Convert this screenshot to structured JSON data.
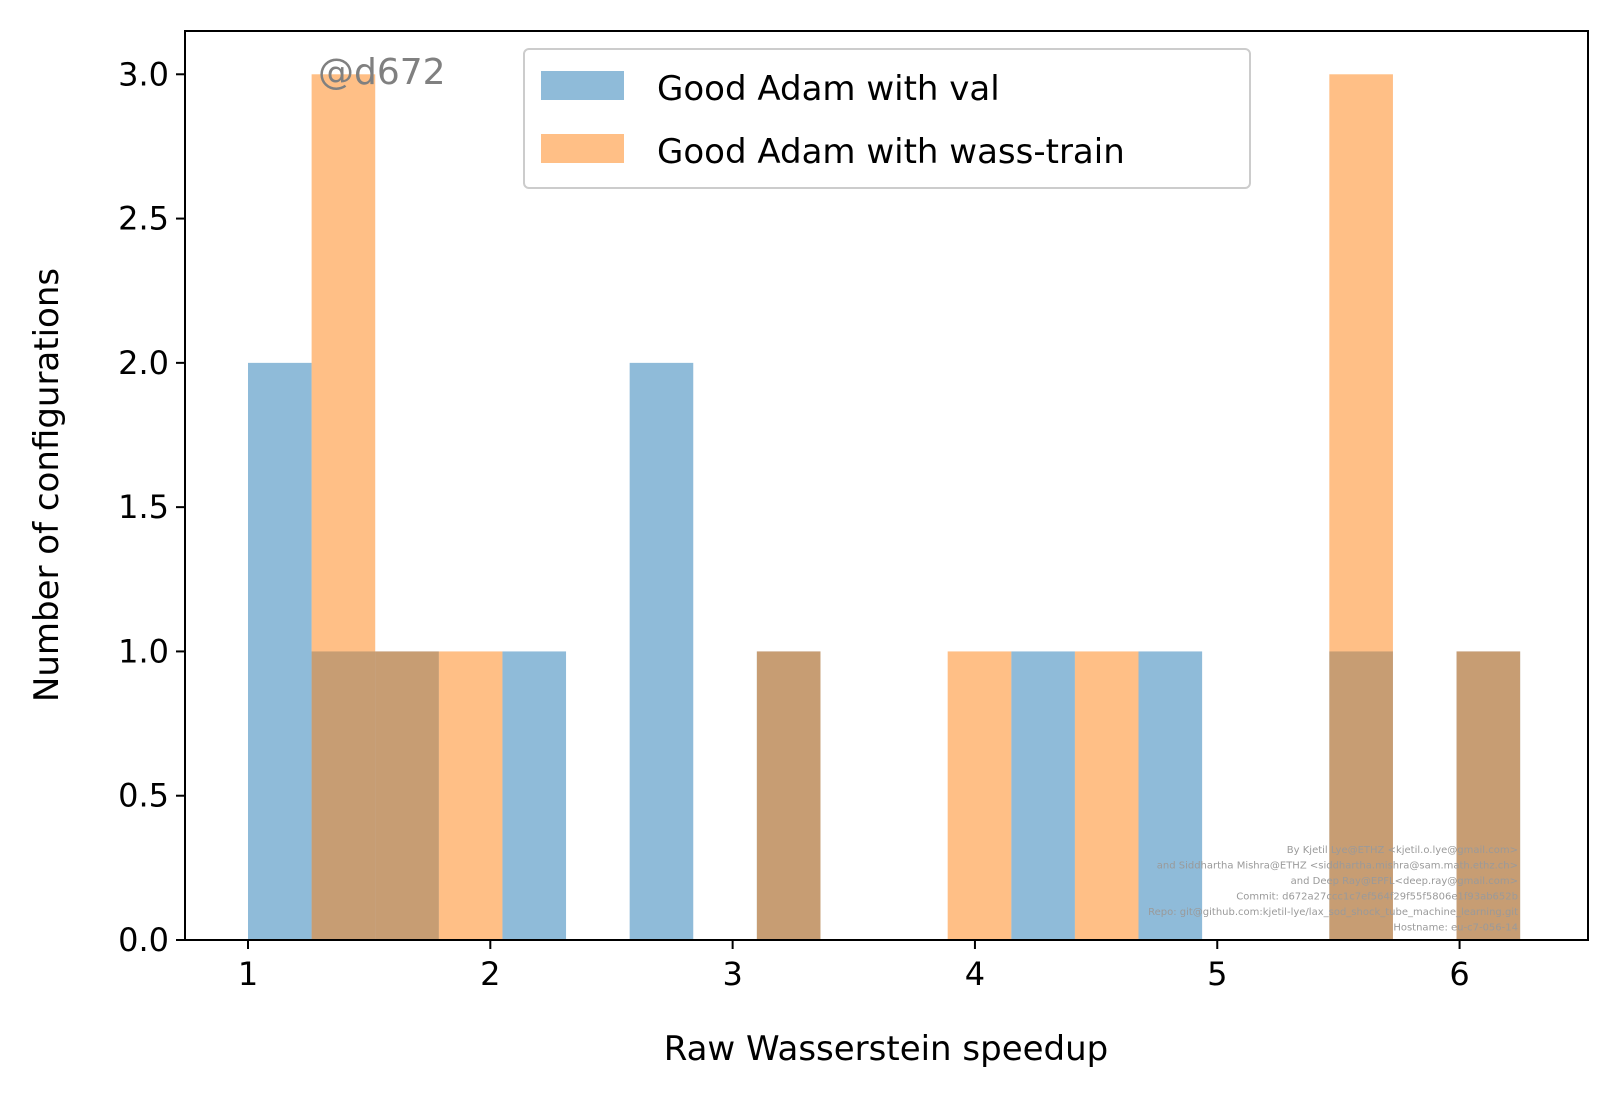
{
  "chart_data": {
    "type": "bar",
    "subtype": "overlapping-histogram",
    "xlabel": "Raw Wasserstein speedup",
    "ylabel": "Number of configurations",
    "xlim": [
      0.74,
      6.53
    ],
    "ylim": [
      0,
      3.15
    ],
    "x_ticks": [
      1,
      2,
      3,
      4,
      5,
      6
    ],
    "y_ticks": [
      0.0,
      0.5,
      1.0,
      1.5,
      2.0,
      2.5,
      3.0
    ],
    "x_tick_labels": [
      "1",
      "2",
      "3",
      "4",
      "5",
      "6"
    ],
    "y_tick_labels": [
      "0.0",
      "0.5",
      "1.0",
      "1.5",
      "2.0",
      "2.5",
      "3.0"
    ],
    "grid": false,
    "legend_position": "top-center",
    "series": [
      {
        "name": "Good Adam with val",
        "color": "#1f77b4",
        "opacity": 0.5,
        "bins": [
          {
            "x0": 1.0,
            "x1": 1.2625,
            "count": 2
          },
          {
            "x0": 1.2625,
            "x1": 1.525,
            "count": 1
          },
          {
            "x0": 1.525,
            "x1": 1.7875,
            "count": 1
          },
          {
            "x0": 2.05,
            "x1": 2.3125,
            "count": 1
          },
          {
            "x0": 2.575,
            "x1": 2.8375,
            "count": 2
          },
          {
            "x0": 3.1,
            "x1": 3.3625,
            "count": 1
          },
          {
            "x0": 4.15,
            "x1": 4.4125,
            "count": 1
          },
          {
            "x0": 4.675,
            "x1": 4.9375,
            "count": 1
          },
          {
            "x0": 5.4625,
            "x1": 5.725,
            "count": 1
          },
          {
            "x0": 5.9875,
            "x1": 6.25,
            "count": 1
          }
        ]
      },
      {
        "name": "Good Adam with wass-train",
        "color": "#ff7f0e",
        "opacity": 0.5,
        "bins": [
          {
            "x0": 1.2625,
            "x1": 1.525,
            "count": 3
          },
          {
            "x0": 1.525,
            "x1": 1.7875,
            "count": 1
          },
          {
            "x0": 1.7875,
            "x1": 2.05,
            "count": 1
          },
          {
            "x0": 3.1,
            "x1": 3.3625,
            "count": 1
          },
          {
            "x0": 3.8875,
            "x1": 4.15,
            "count": 1
          },
          {
            "x0": 4.4125,
            "x1": 4.675,
            "count": 1
          },
          {
            "x0": 5.4625,
            "x1": 5.725,
            "count": 3
          },
          {
            "x0": 5.9875,
            "x1": 6.25,
            "count": 1
          }
        ]
      }
    ],
    "annotations": {
      "watermark": "@d672",
      "credits": [
        "By Kjetil Lye@ETHZ <kjetil.o.lye@gmail.com>",
        "and Siddhartha Mishra@ETHZ <siddhartha.mishra@sam.math.ethz.ch>",
        "and Deep Ray@EPFL<deep.ray@gmail.com>",
        "Commit: d672a27ccc1c7ef564f29f55f5806e1f93ab652b",
        "Repo: git@github.com:kjetil-lye/lax_sod_shock_tube_machine_learning.git",
        "Hostname: eu-c7-056-14"
      ]
    }
  }
}
